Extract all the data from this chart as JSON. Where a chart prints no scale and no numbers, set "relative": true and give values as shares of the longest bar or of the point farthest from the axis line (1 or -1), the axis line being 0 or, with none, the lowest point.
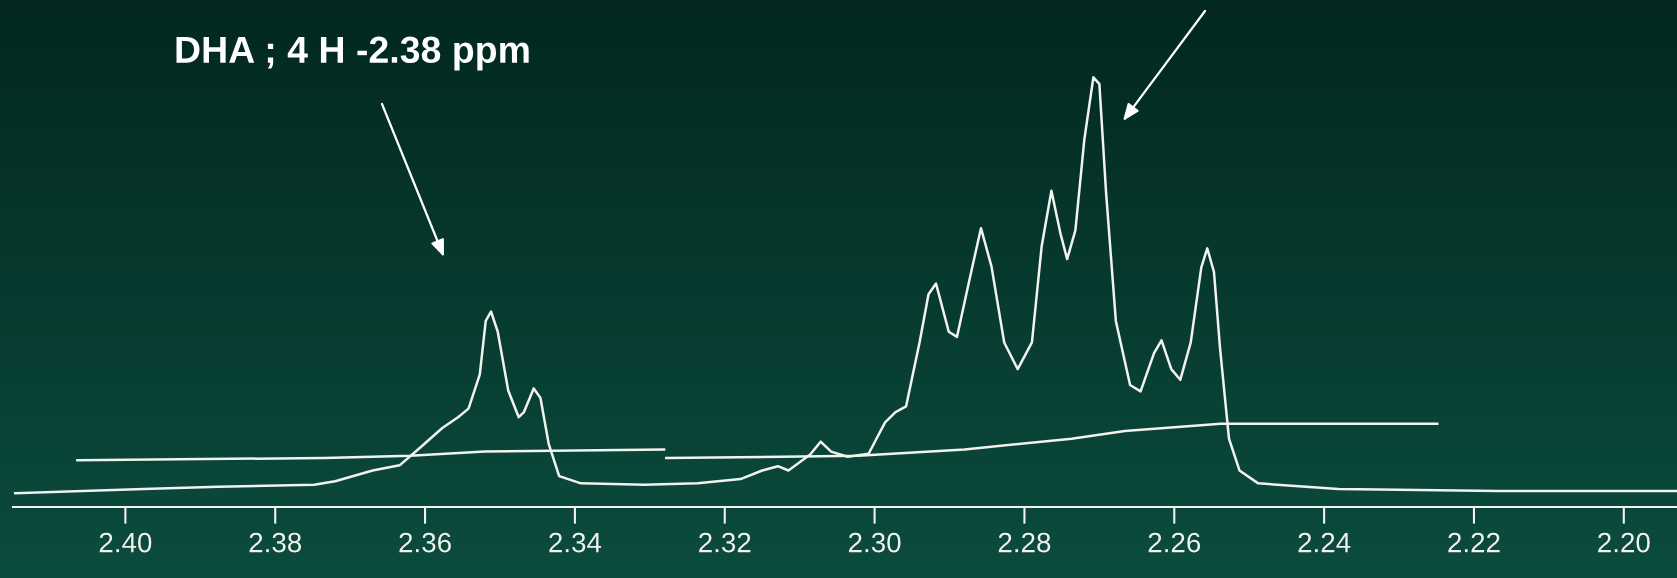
{
  "chart_data": {
    "type": "line",
    "relative": true,
    "xlim": [
      2.415,
      2.1929
    ],
    "xticks": [
      {
        "value": 2.4,
        "label": "2.40"
      },
      {
        "value": 2.38,
        "label": "2.38"
      },
      {
        "value": 2.36,
        "label": "2.36"
      },
      {
        "value": 2.34,
        "label": "2.34"
      },
      {
        "value": 2.32,
        "label": "2.32"
      },
      {
        "value": 2.3,
        "label": "2.30"
      },
      {
        "value": 2.28,
        "label": "2.28"
      },
      {
        "value": 2.26,
        "label": "2.26"
      },
      {
        "value": 2.24,
        "label": "2.24"
      },
      {
        "value": 2.22,
        "label": "2.22"
      },
      {
        "value": 2.2,
        "label": "2.20"
      }
    ],
    "grid": false,
    "legend": false,
    "annotations": [
      "DHA ; 4 H -2.38 ppm"
    ],
    "series": [
      {
        "color": "#f2f2ee",
        "x": [
          2.4147,
          2.3976,
          2.3876,
          2.3748,
          2.372,
          2.367,
          2.3634,
          2.3606,
          2.3577,
          2.3556,
          2.3542,
          2.3527,
          2.3519,
          2.3512,
          2.3503,
          2.3489,
          2.3475,
          2.3468,
          2.3455,
          2.3446,
          2.3435,
          2.3421,
          2.3392,
          2.3307,
          2.3236,
          2.3179,
          2.315,
          2.3129,
          2.3115,
          2.3086,
          2.3072,
          2.3058,
          2.3036,
          2.3008,
          2.2986,
          2.2972,
          2.2958,
          2.294,
          2.2928,
          2.2918,
          2.2901,
          2.289,
          2.2873,
          2.2858,
          2.2844,
          2.2827,
          2.2809,
          2.279,
          2.2777,
          2.2764,
          2.2752,
          2.2743,
          2.2732,
          2.272,
          2.2708,
          2.27,
          2.2691,
          2.2678,
          2.2659,
          2.2645,
          2.2627,
          2.2617,
          2.2604,
          2.2592,
          2.2578,
          2.2564,
          2.2556,
          2.2547,
          2.2539,
          2.2527,
          2.2513,
          2.2488,
          2.2381,
          2.2168,
          2.1929
        ],
        "values": [
          0.032,
          0.042,
          0.047,
          0.052,
          0.06,
          0.085,
          0.097,
          0.139,
          0.184,
          0.209,
          0.229,
          0.308,
          0.433,
          0.455,
          0.408,
          0.271,
          0.209,
          0.221,
          0.276,
          0.254,
          0.147,
          0.072,
          0.055,
          0.052,
          0.055,
          0.065,
          0.085,
          0.095,
          0.085,
          0.122,
          0.152,
          0.129,
          0.117,
          0.124,
          0.197,
          0.221,
          0.234,
          0.383,
          0.495,
          0.52,
          0.408,
          0.396,
          0.532,
          0.649,
          0.56,
          0.383,
          0.321,
          0.383,
          0.607,
          0.736,
          0.637,
          0.577,
          0.644,
          0.856,
          1,
          0.985,
          0.731,
          0.433,
          0.284,
          0.269,
          0.358,
          0.388,
          0.321,
          0.296,
          0.383,
          0.557,
          0.602,
          0.547,
          0.371,
          0.159,
          0.085,
          0.055,
          0.042,
          0.037,
          0.037
        ]
      },
      {
        "color": "#f2f2ee",
        "x": [
          2.4064,
          2.3734,
          2.362,
          2.352,
          2.3281
        ],
        "values": [
          0.109,
          0.114,
          0.119,
          0.129,
          0.134
        ]
      },
      {
        "color": "#f2f2ee",
        "x": [
          2.3278,
          2.3022,
          2.288,
          2.2737,
          2.2666,
          2.2538,
          2.2249
        ],
        "values": [
          0.114,
          0.119,
          0.134,
          0.159,
          0.177,
          0.194,
          0.194
        ]
      }
    ]
  }
}
